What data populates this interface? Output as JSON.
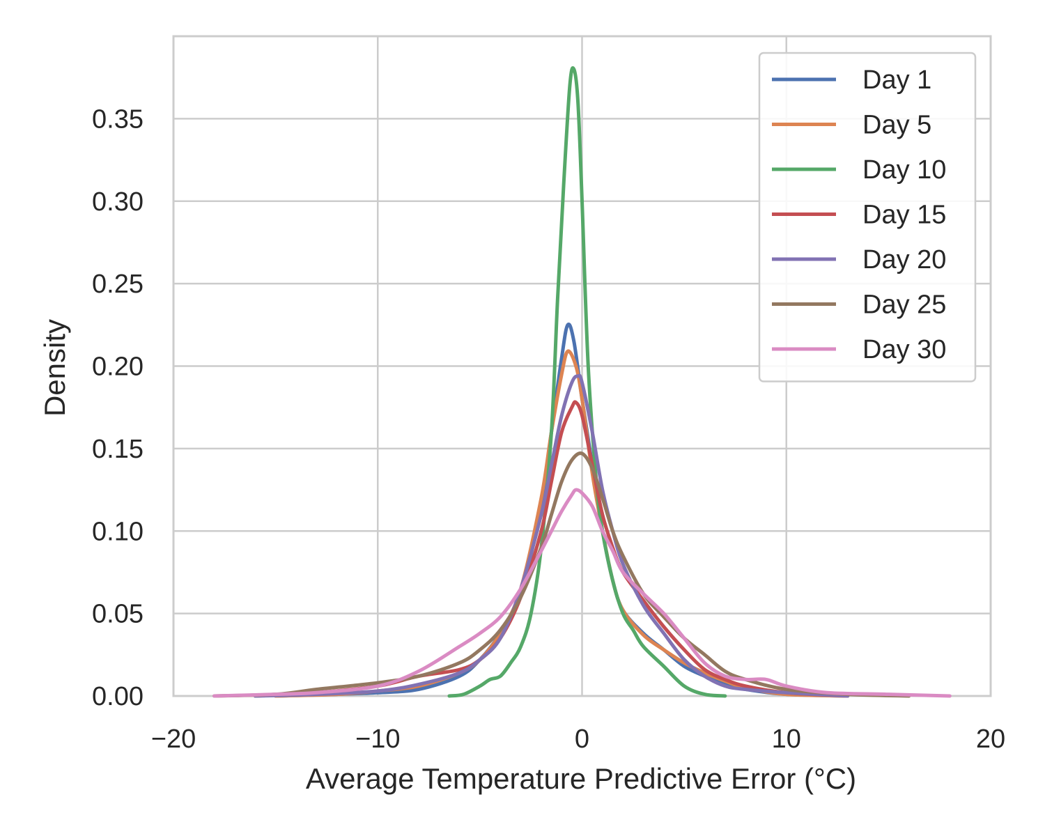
{
  "chart_data": {
    "type": "line",
    "title": "",
    "xlabel": "Average Temperature Predictive Error (°C)",
    "ylabel": "Density",
    "xlim": [
      -20,
      20
    ],
    "ylim": [
      0,
      0.4
    ],
    "xticks": [
      -20,
      -10,
      0,
      10,
      20
    ],
    "xtick_labels": [
      "−20",
      "−10",
      "0",
      "10",
      "20"
    ],
    "yticks": [
      0.0,
      0.05,
      0.1,
      0.15,
      0.2,
      0.25,
      0.3,
      0.35
    ],
    "ytick_labels": [
      "0.00",
      "0.05",
      "0.10",
      "0.15",
      "0.20",
      "0.25",
      "0.30",
      "0.35"
    ],
    "grid": true,
    "legend_position": "top-right",
    "series": [
      {
        "name": "Day 1",
        "color": "#4c72b0",
        "points": [
          [
            -15,
            0
          ],
          [
            -12,
            0.001
          ],
          [
            -10,
            0.002
          ],
          [
            -8,
            0.004
          ],
          [
            -6,
            0.012
          ],
          [
            -5,
            0.022
          ],
          [
            -4,
            0.038
          ],
          [
            -3,
            0.062
          ],
          [
            -2,
            0.115
          ],
          [
            -1.5,
            0.16
          ],
          [
            -1,
            0.205
          ],
          [
            -0.7,
            0.225
          ],
          [
            -0.4,
            0.215
          ],
          [
            0,
            0.18
          ],
          [
            0.5,
            0.14
          ],
          [
            1,
            0.1
          ],
          [
            1.5,
            0.07
          ],
          [
            2,
            0.052
          ],
          [
            3,
            0.038
          ],
          [
            4,
            0.028
          ],
          [
            5,
            0.018
          ],
          [
            6,
            0.012
          ],
          [
            7,
            0.007
          ],
          [
            8,
            0.004
          ],
          [
            10,
            0.001
          ],
          [
            13,
            0
          ]
        ]
      },
      {
        "name": "Day 5",
        "color": "#dd8452",
        "points": [
          [
            -15,
            0
          ],
          [
            -12,
            0.001
          ],
          [
            -10,
            0.003
          ],
          [
            -8,
            0.006
          ],
          [
            -6,
            0.014
          ],
          [
            -5,
            0.022
          ],
          [
            -4,
            0.038
          ],
          [
            -3,
            0.065
          ],
          [
            -2,
            0.12
          ],
          [
            -1.5,
            0.16
          ],
          [
            -1,
            0.195
          ],
          [
            -0.7,
            0.209
          ],
          [
            -0.3,
            0.2
          ],
          [
            0,
            0.18
          ],
          [
            0.5,
            0.135
          ],
          [
            1,
            0.1
          ],
          [
            1.5,
            0.07
          ],
          [
            2,
            0.052
          ],
          [
            3,
            0.037
          ],
          [
            4,
            0.028
          ],
          [
            5,
            0.02
          ],
          [
            6,
            0.014
          ],
          [
            7,
            0.009
          ],
          [
            8,
            0.005
          ],
          [
            10,
            0.001
          ],
          [
            13,
            0
          ]
        ]
      },
      {
        "name": "Day 10",
        "color": "#55a868",
        "points": [
          [
            -6.5,
            0
          ],
          [
            -5.8,
            0.001
          ],
          [
            -5,
            0.006
          ],
          [
            -4.5,
            0.01
          ],
          [
            -4,
            0.012
          ],
          [
            -3.5,
            0.02
          ],
          [
            -3,
            0.03
          ],
          [
            -2.5,
            0.05
          ],
          [
            -2,
            0.09
          ],
          [
            -1.5,
            0.16
          ],
          [
            -1.2,
            0.24
          ],
          [
            -0.9,
            0.31
          ],
          [
            -0.6,
            0.37
          ],
          [
            -0.4,
            0.38
          ],
          [
            -0.2,
            0.36
          ],
          [
            0,
            0.3
          ],
          [
            0.3,
            0.2
          ],
          [
            0.7,
            0.13
          ],
          [
            1,
            0.1
          ],
          [
            1.5,
            0.07
          ],
          [
            2,
            0.05
          ],
          [
            2.5,
            0.04
          ],
          [
            3,
            0.03
          ],
          [
            4,
            0.018
          ],
          [
            5,
            0.006
          ],
          [
            6,
            0.001
          ],
          [
            7,
            0
          ]
        ]
      },
      {
        "name": "Day 15",
        "color": "#c44e52",
        "points": [
          [
            -16,
            0
          ],
          [
            -13,
            0.002
          ],
          [
            -10,
            0.006
          ],
          [
            -8,
            0.012
          ],
          [
            -6,
            0.016
          ],
          [
            -5,
            0.022
          ],
          [
            -4,
            0.035
          ],
          [
            -3,
            0.06
          ],
          [
            -2,
            0.1
          ],
          [
            -1.5,
            0.13
          ],
          [
            -1,
            0.16
          ],
          [
            -0.5,
            0.175
          ],
          [
            -0.3,
            0.178
          ],
          [
            0,
            0.17
          ],
          [
            0.5,
            0.14
          ],
          [
            1,
            0.11
          ],
          [
            1.5,
            0.09
          ],
          [
            2,
            0.075
          ],
          [
            3,
            0.058
          ],
          [
            4,
            0.042
          ],
          [
            5,
            0.028
          ],
          [
            6,
            0.016
          ],
          [
            7,
            0.01
          ],
          [
            8,
            0.006
          ],
          [
            10,
            0.002
          ],
          [
            13,
            0
          ]
        ]
      },
      {
        "name": "Day 20",
        "color": "#8172b3",
        "points": [
          [
            -16,
            0
          ],
          [
            -13,
            0.001
          ],
          [
            -10,
            0.003
          ],
          [
            -8,
            0.007
          ],
          [
            -6,
            0.014
          ],
          [
            -5,
            0.022
          ],
          [
            -4,
            0.035
          ],
          [
            -3,
            0.065
          ],
          [
            -2,
            0.11
          ],
          [
            -1.5,
            0.14
          ],
          [
            -1,
            0.17
          ],
          [
            -0.5,
            0.19
          ],
          [
            -0.2,
            0.194
          ],
          [
            0,
            0.19
          ],
          [
            0.5,
            0.16
          ],
          [
            1,
            0.125
          ],
          [
            1.5,
            0.1
          ],
          [
            2,
            0.08
          ],
          [
            3,
            0.055
          ],
          [
            4,
            0.038
          ],
          [
            5,
            0.022
          ],
          [
            6,
            0.012
          ],
          [
            7,
            0.006
          ],
          [
            8,
            0.004
          ],
          [
            10,
            0.002
          ],
          [
            13,
            0
          ]
        ]
      },
      {
        "name": "Day 25",
        "color": "#937860",
        "points": [
          [
            -18,
            0
          ],
          [
            -15,
            0.001
          ],
          [
            -13,
            0.004
          ],
          [
            -10,
            0.008
          ],
          [
            -8,
            0.012
          ],
          [
            -6,
            0.02
          ],
          [
            -5,
            0.028
          ],
          [
            -4,
            0.04
          ],
          [
            -3,
            0.06
          ],
          [
            -2,
            0.09
          ],
          [
            -1.5,
            0.11
          ],
          [
            -1,
            0.13
          ],
          [
            -0.5,
            0.143
          ],
          [
            0,
            0.147
          ],
          [
            0.5,
            0.138
          ],
          [
            1,
            0.12
          ],
          [
            1.5,
            0.1
          ],
          [
            2,
            0.085
          ],
          [
            3,
            0.062
          ],
          [
            4,
            0.048
          ],
          [
            5,
            0.035
          ],
          [
            6,
            0.025
          ],
          [
            7,
            0.015
          ],
          [
            8,
            0.01
          ],
          [
            10,
            0.004
          ],
          [
            13,
            0.001
          ],
          [
            16,
            0
          ]
        ]
      },
      {
        "name": "Day 30",
        "color": "#da8bc3",
        "points": [
          [
            -18,
            0
          ],
          [
            -15,
            0.001
          ],
          [
            -13,
            0.002
          ],
          [
            -10,
            0.006
          ],
          [
            -8,
            0.015
          ],
          [
            -6,
            0.03
          ],
          [
            -5,
            0.038
          ],
          [
            -4,
            0.048
          ],
          [
            -3,
            0.065
          ],
          [
            -2,
            0.088
          ],
          [
            -1.5,
            0.1
          ],
          [
            -1,
            0.112
          ],
          [
            -0.5,
            0.122
          ],
          [
            -0.3,
            0.125
          ],
          [
            0,
            0.123
          ],
          [
            0.5,
            0.115
          ],
          [
            1,
            0.1
          ],
          [
            1.5,
            0.088
          ],
          [
            2,
            0.075
          ],
          [
            3,
            0.062
          ],
          [
            4,
            0.05
          ],
          [
            5,
            0.035
          ],
          [
            6,
            0.02
          ],
          [
            7,
            0.012
          ],
          [
            8,
            0.01
          ],
          [
            9,
            0.01
          ],
          [
            10,
            0.006
          ],
          [
            12,
            0.002
          ],
          [
            15,
            0.001
          ],
          [
            18,
            0
          ]
        ]
      }
    ]
  }
}
